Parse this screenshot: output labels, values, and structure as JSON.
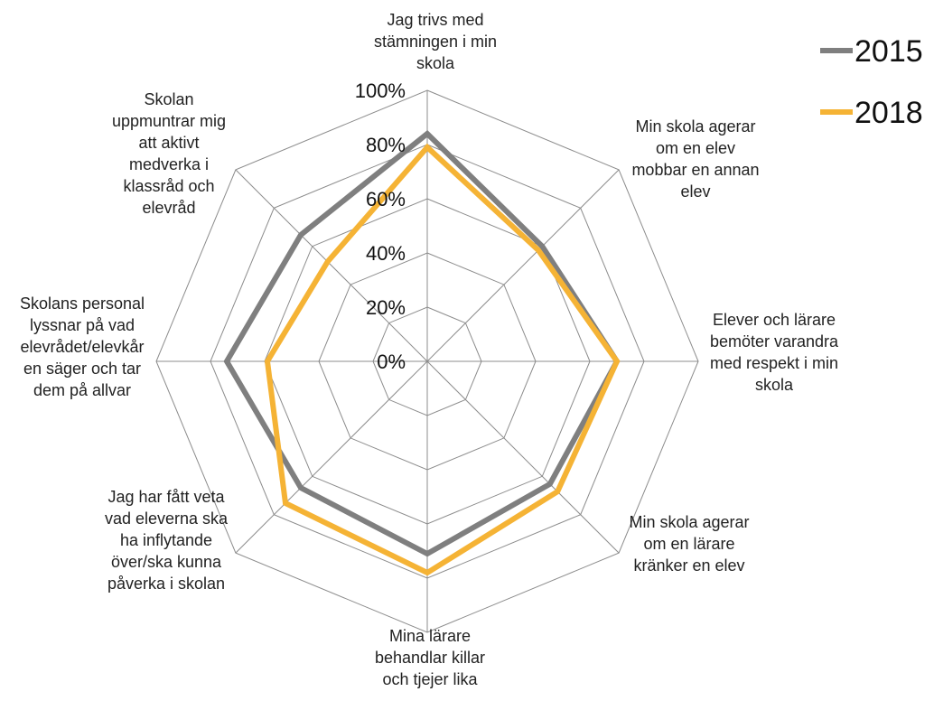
{
  "chart_data": {
    "type": "radar",
    "title": "",
    "categories": [
      "Jag trivs med stämningen i min skola",
      "Min skola agerar om en elev mobbar en annan elev",
      "Elever och lärare bemöter varandra med respekt i min skola",
      "Min skola agerar om en lärare kränker en elev",
      "Mina lärare behandlar killar och tjejer lika",
      "Jag har fått veta vad eleverna ska ha inflytande över/ska kunna påverka i skolan",
      "Skolans personal lyssnar på vad elevrådet/elevkåren säger och tar dem på allvar",
      "Skolan uppmuntrar mig att aktivt medverka i klassråd och elevråd"
    ],
    "category_lines": [
      [
        "Jag trivs med",
        "stämningen i min",
        "skola"
      ],
      [
        "Min skola agerar",
        "om en elev",
        "mobbar en annan",
        "elev"
      ],
      [
        "Elever och lärare",
        "bemöter varandra",
        "med respekt i min",
        "skola"
      ],
      [
        "Min skola agerar",
        "om en lärare",
        "kränker en elev"
      ],
      [
        "Mina lärare",
        "behandlar killar",
        "och tjejer lika"
      ],
      [
        "Jag har fått veta",
        "vad eleverna ska",
        "ha inflytande",
        "över/ska kunna",
        "påverka i skolan"
      ],
      [
        "Skolans personal",
        "lyssnar på vad",
        "elevrådet/elevkår",
        "en säger och tar",
        "dem på allvar"
      ],
      [
        "Skolan",
        "uppmuntrar mig",
        "att aktivt",
        "medverka i",
        "klassråd och",
        "elevråd"
      ]
    ],
    "r_ticks": [
      "0%",
      "20%",
      "40%",
      "60%",
      "80%",
      "100%"
    ],
    "r_range": [
      0,
      100
    ],
    "grid": true,
    "legend_position": "top-right",
    "series": [
      {
        "name": "2015",
        "color": "#7f7f7f",
        "values": [
          84,
          60,
          70,
          64,
          71,
          66,
          74,
          66
        ]
      },
      {
        "name": "2018",
        "color": "#f5b335",
        "values": [
          79,
          58,
          70,
          68,
          78,
          74,
          59,
          52
        ]
      }
    ]
  }
}
